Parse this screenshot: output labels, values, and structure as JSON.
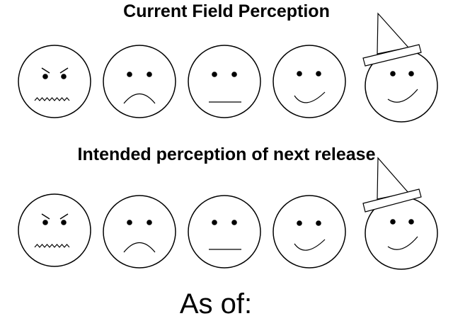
{
  "titles": {
    "current": "Current Field Perception",
    "intended": "Intended perception of next release"
  },
  "footer": {
    "as_of": "As of:"
  },
  "scale": [
    {
      "name": "angry",
      "icon": "angry-face-icon"
    },
    {
      "name": "sad",
      "icon": "sad-face-icon"
    },
    {
      "name": "neutral",
      "icon": "neutral-face-icon"
    },
    {
      "name": "happy",
      "icon": "happy-face-icon"
    },
    {
      "name": "party",
      "icon": "party-face-icon"
    }
  ],
  "colors": {
    "ink": "#000000",
    "background": "#ffffff"
  }
}
